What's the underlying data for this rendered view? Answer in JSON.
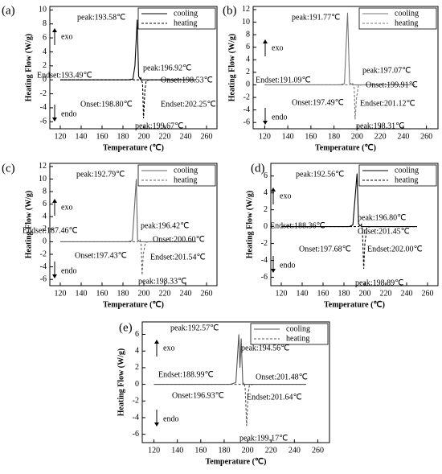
{
  "chart_data": [
    {
      "type": "line",
      "panel": "(a)",
      "xlabel": "Temperature (℃)",
      "ylabel": "Heating Flow (W/g)",
      "exo": "exo",
      "endo": "endo",
      "xlim": [
        110,
        270
      ],
      "ylim": [
        -7,
        10.5
      ],
      "xticks": [
        120,
        140,
        160,
        180,
        200,
        220,
        240,
        260
      ],
      "yticks": [
        -6,
        -4,
        -2,
        0,
        2,
        4,
        6,
        8,
        10
      ],
      "x": [
        120,
        185,
        189.5,
        191.5,
        193.58,
        195,
        197,
        198.8,
        199.67,
        201,
        202.25,
        206,
        250
      ],
      "series": [
        {
          "name": "cooling",
          "color": "#000000",
          "dash": false,
          "values": [
            0,
            0,
            0.1,
            2,
            8.6,
            0.5,
            0,
            0,
            0,
            0,
            0,
            0,
            0
          ]
        },
        {
          "name": "heating",
          "color": "#000000",
          "dash": true,
          "values": [
            0,
            0,
            0,
            0,
            0,
            0,
            0.3,
            -0.5,
            -5.5,
            -1.5,
            -0.1,
            0,
            0
          ]
        }
      ],
      "annotations": [
        "peak:193.58℃",
        "Endset:193.49℃",
        "peak:196.92℃",
        "Onset:198.53℃",
        "Onset:198.80℃",
        "Endset:202.25℃",
        "peak:199.67℃"
      ]
    },
    {
      "type": "line",
      "panel": "(b)",
      "xlabel": "Temperature (℃)",
      "ylabel": "Heating Flow (W/g)",
      "exo": "exo",
      "endo": "endo",
      "xlim": [
        110,
        270
      ],
      "ylim": [
        -7,
        12.5
      ],
      "xticks": [
        120,
        140,
        160,
        180,
        200,
        220,
        240,
        260
      ],
      "yticks": [
        -6,
        -4,
        -2,
        0,
        2,
        4,
        6,
        8,
        10,
        12
      ],
      "x": [
        120,
        185,
        189,
        191.77,
        193.5,
        196,
        197.5,
        198.31,
        199.5,
        201.1,
        205,
        250
      ],
      "series": [
        {
          "name": "cooling",
          "color": "#777777",
          "dash": false,
          "values": [
            0,
            0,
            0.2,
            11.5,
            0.3,
            0,
            0,
            0,
            0,
            0,
            0,
            0
          ]
        },
        {
          "name": "heating",
          "color": "#777777",
          "dash": true,
          "values": [
            0,
            0,
            0,
            0,
            0,
            0.3,
            -0.5,
            -5.5,
            -2,
            -0.1,
            0,
            0
          ]
        }
      ],
      "annotations": [
        "peak:191.77℃",
        "Endset:191.09℃",
        "peak:197.07℃",
        "Onset:199.91℃",
        "Onset:197.49℃",
        "Endset:201.12℃",
        "peak:198.31℃"
      ]
    },
    {
      "type": "line",
      "panel": "(c)",
      "xlabel": "Temperature (℃)",
      "ylabel": "Heating Flow (W/g)",
      "exo": "exo",
      "endo": "endo",
      "xlim": [
        110,
        270
      ],
      "ylim": [
        -7,
        12.5
      ],
      "xticks": [
        120,
        140,
        160,
        180,
        200,
        220,
        240,
        260
      ],
      "yticks": [
        -6,
        -4,
        -2,
        0,
        2,
        4,
        6,
        8,
        10,
        12
      ],
      "x": [
        120,
        185,
        189,
        192.79,
        194,
        196.42,
        197.43,
        198.33,
        199.5,
        201.54,
        205,
        250
      ],
      "series": [
        {
          "name": "cooling",
          "color": "#666666",
          "dash": false,
          "values": [
            0,
            0,
            0.2,
            10,
            0.3,
            0,
            0,
            0,
            0,
            0,
            0,
            0
          ]
        },
        {
          "name": "heating",
          "color": "#666666",
          "dash": true,
          "values": [
            0,
            0,
            0,
            0,
            0,
            0.3,
            -0.5,
            -5.3,
            -2,
            -0.1,
            0,
            0
          ]
        }
      ],
      "annotations": [
        "peak:192.79℃",
        "Endset:187.46℃",
        "peak:196.42℃",
        "Onset:200.60℃",
        "Onset:197.43℃",
        "Endset:201.54℃",
        "peak:198.33℃"
      ]
    },
    {
      "type": "line",
      "panel": "(d)",
      "xlabel": "Temperature (℃)",
      "ylabel": "Heating Flow (W/g)",
      "exo": "exo",
      "endo": "endo",
      "xlim": [
        110,
        270
      ],
      "ylim": [
        -7,
        7.5
      ],
      "xticks": [
        120,
        140,
        160,
        180,
        200,
        220,
        240,
        260
      ],
      "yticks": [
        -6,
        -4,
        -2,
        0,
        2,
        4,
        6
      ],
      "x": [
        120,
        185,
        188.5,
        192.56,
        194,
        196.8,
        197.68,
        198.89,
        200,
        202,
        205,
        250
      ],
      "series": [
        {
          "name": "cooling",
          "color": "#000000",
          "dash": false,
          "values": [
            0,
            0,
            0.2,
            6.3,
            0.3,
            0,
            0,
            0,
            0,
            0,
            0,
            0
          ]
        },
        {
          "name": "heating",
          "color": "#000000",
          "dash": true,
          "values": [
            0,
            0,
            0,
            0,
            0,
            0.3,
            -0.5,
            -5,
            -2,
            -0.1,
            0,
            0
          ]
        }
      ],
      "annotations": [
        "peak:192.56℃",
        "Endset:188.36℃",
        "peak:196.80℃",
        "Onset:201.45℃",
        "Onset:197.68℃",
        "Endset:202.00℃",
        "peak:198.89℃"
      ]
    },
    {
      "type": "line",
      "panel": "(e)",
      "xlabel": "Temperature (℃)",
      "ylabel": "Heating Flow (W/g)",
      "exo": "exo",
      "endo": "endo",
      "xlim": [
        110,
        270
      ],
      "ylim": [
        -7,
        7.5
      ],
      "xticks": [
        120,
        140,
        160,
        180,
        200,
        220,
        240,
        260
      ],
      "yticks": [
        -6,
        -4,
        -2,
        0,
        2,
        4,
        6
      ],
      "x": [
        120,
        185,
        190,
        192.57,
        193.5,
        194.56,
        196,
        197,
        198,
        199.17,
        200.5,
        201.6,
        205,
        250
      ],
      "series": [
        {
          "name": "cooling",
          "color": "#555555",
          "dash": false,
          "values": [
            0,
            0,
            0.2,
            6,
            2,
            5.5,
            0,
            0,
            0,
            0,
            0,
            0,
            0,
            0
          ]
        },
        {
          "name": "heating",
          "color": "#555555",
          "dash": true,
          "values": [
            0,
            0,
            0,
            0,
            0,
            0,
            0,
            0.2,
            -0.5,
            -5,
            -1,
            -0.1,
            0,
            0
          ]
        }
      ],
      "annotations": [
        "peak:192.57℃",
        "peak:194.56℃",
        "Endset:188.99℃",
        "Onset:201.48℃",
        "Onset:196.93℃",
        "Endset:201.64℃",
        "peak:199.17℃"
      ]
    }
  ]
}
